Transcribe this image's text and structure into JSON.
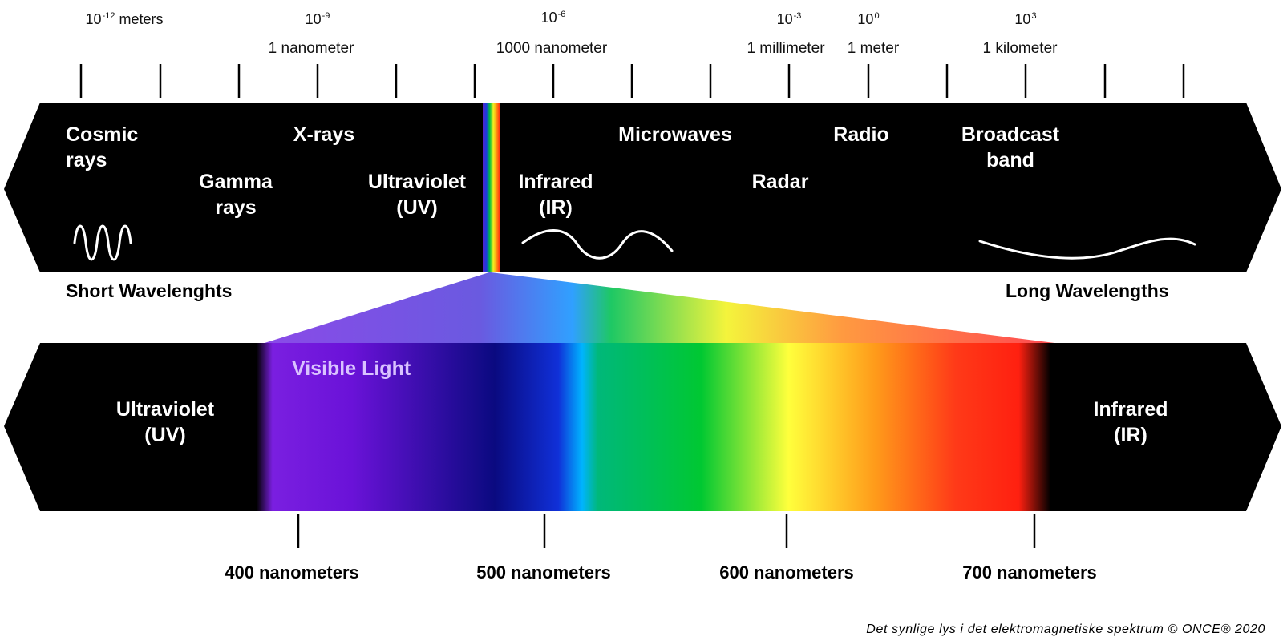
{
  "scale_top": [
    {
      "base": "10",
      "exp": "-12",
      "suffix": " meters",
      "unit": ""
    },
    {
      "base": "10",
      "exp": "-9",
      "suffix": "",
      "unit": "1 nanometer"
    },
    {
      "base": "10",
      "exp": "-6",
      "suffix": "",
      "unit": "1000 nanometer"
    },
    {
      "base": "10",
      "exp": "-3",
      "suffix": "",
      "unit": "1 millimeter"
    },
    {
      "base": "10",
      "exp": "0",
      "suffix": "",
      "unit": "1 meter"
    },
    {
      "base": "10",
      "exp": "3",
      "suffix": "",
      "unit": "1 kilometer"
    }
  ],
  "spectrum_labels": {
    "cosmic": "Cosmic rays",
    "gamma": "Gamma rays",
    "xrays": "X-rays",
    "uv": "Ultraviolet (UV)",
    "ir": "Infrared (IR)",
    "microwaves": "Microwaves",
    "radar": "Radar",
    "radio": "Radio",
    "broadcast": "Broadcast band"
  },
  "short_wavelengths": "Short Wavelenghts",
  "long_wavelengths": "Long Wavelengths",
  "visible": {
    "title": "Visible Light",
    "uv": "Ultraviolet (UV)",
    "ir": "Infrared (IR)",
    "ticks": [
      "400 nanometers",
      "500 nanometers",
      "600 nanometers",
      "700 nanometers"
    ]
  },
  "caption": "Det synlige lys i det elektromagnetiske spektrum © ONCE® 2020",
  "colors": {
    "band": "#000000",
    "violet": "#7a1fe0",
    "blue": "#0a0a8a",
    "cyan": "#00b4ff",
    "green": "#00c832",
    "yellow": "#ffff3c",
    "red": "#ff2a1a"
  }
}
